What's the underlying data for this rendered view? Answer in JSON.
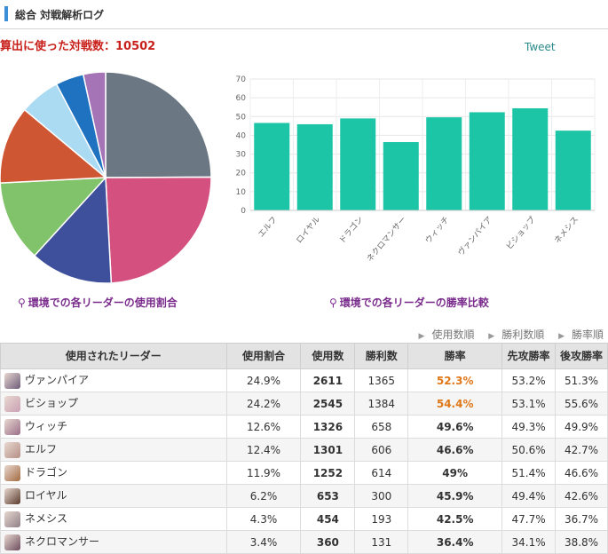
{
  "header": {
    "title": "総合 対戦解析ログ"
  },
  "summary": {
    "count_label": "算出に使った対戦数：10502"
  },
  "tweet_label": "Tweet",
  "captions": {
    "pie": "環境での各リーダーの使用割合",
    "bar": "環境での各リーダーの勝率比較"
  },
  "sort_links": [
    "使用数順",
    "勝利数順",
    "勝率順"
  ],
  "colors": {
    "bars": "#1cc5a5",
    "highlight": "#e07818",
    "accent_title": "#c8201a"
  },
  "pie_chart": {
    "type": "pie",
    "slices": [
      {
        "label": "ヴァンパイア",
        "value": 24.9,
        "color": "#6b7884"
      },
      {
        "label": "ビショップ",
        "value": 24.2,
        "color": "#d4507f"
      },
      {
        "label": "ウィッチ",
        "value": 12.6,
        "color": "#3e4f9c"
      },
      {
        "label": "エルフ",
        "value": 12.4,
        "color": "#80c36b"
      },
      {
        "label": "ドラゴン",
        "value": 11.9,
        "color": "#cf5633"
      },
      {
        "label": "ロイヤル",
        "value": 6.2,
        "color": "#abdaf3"
      },
      {
        "label": "ネメシス",
        "value": 4.3,
        "color": "#1e72bf"
      },
      {
        "label": "ネクロマンサー",
        "value": 3.4,
        "color": "#a574b7"
      }
    ]
  },
  "chart_data": {
    "type": "bar",
    "title": "環境での各リーダーの勝率比較",
    "categories": [
      "エルフ",
      "ロイヤル",
      "ドラゴン",
      "ネクロマンサー",
      "ウィッチ",
      "ヴァンパイア",
      "ビショップ",
      "ネメシス"
    ],
    "values": [
      46.6,
      45.9,
      49,
      36.4,
      49.6,
      52.3,
      54.4,
      42.5
    ],
    "yticks": [
      "0",
      "10",
      "20",
      "30",
      "40",
      "50",
      "60",
      "70"
    ],
    "ylim": [
      0,
      70
    ],
    "grid": true
  },
  "table": {
    "headers": [
      "使用されたリーダー",
      "使用割合",
      "使用数",
      "勝利数",
      "勝率",
      "先攻勝率",
      "後攻勝率"
    ],
    "rows": [
      {
        "leader": "ヴァンパイア",
        "share": "24.9%",
        "used": "2611",
        "wins": "1365",
        "rate": "52.3%",
        "first": "53.2%",
        "second": "51.3%",
        "hl": true,
        "avatar": "#6d5b7a"
      },
      {
        "leader": "ビショップ",
        "share": "24.2%",
        "used": "2545",
        "wins": "1384",
        "rate": "54.4%",
        "first": "53.1%",
        "second": "55.6%",
        "hl": true,
        "avatar": "#caa0b4"
      },
      {
        "leader": "ウィッチ",
        "share": "12.6%",
        "used": "1326",
        "wins": "658",
        "rate": "49.6%",
        "first": "49.3%",
        "second": "49.9%",
        "hl": false,
        "avatar": "#9a6e88"
      },
      {
        "leader": "エルフ",
        "share": "12.4%",
        "used": "1301",
        "wins": "606",
        "rate": "46.6%",
        "first": "50.6%",
        "second": "42.7%",
        "hl": false,
        "avatar": "#b58f86"
      },
      {
        "leader": "ドラゴン",
        "share": "11.9%",
        "used": "1252",
        "wins": "614",
        "rate": "49%",
        "first": "51.4%",
        "second": "46.6%",
        "hl": false,
        "avatar": "#a36a40"
      },
      {
        "leader": "ロイヤル",
        "share": "6.2%",
        "used": "653",
        "wins": "300",
        "rate": "45.9%",
        "first": "49.4%",
        "second": "42.6%",
        "hl": false,
        "avatar": "#5a3a2c"
      },
      {
        "leader": "ネメシス",
        "share": "4.3%",
        "used": "454",
        "wins": "193",
        "rate": "42.5%",
        "first": "47.7%",
        "second": "36.7%",
        "hl": false,
        "avatar": "#8f7e86"
      },
      {
        "leader": "ネクロマンサー",
        "share": "3.4%",
        "used": "360",
        "wins": "131",
        "rate": "36.4%",
        "first": "34.1%",
        "second": "38.8%",
        "hl": false,
        "avatar": "#6c4c5c"
      }
    ]
  }
}
